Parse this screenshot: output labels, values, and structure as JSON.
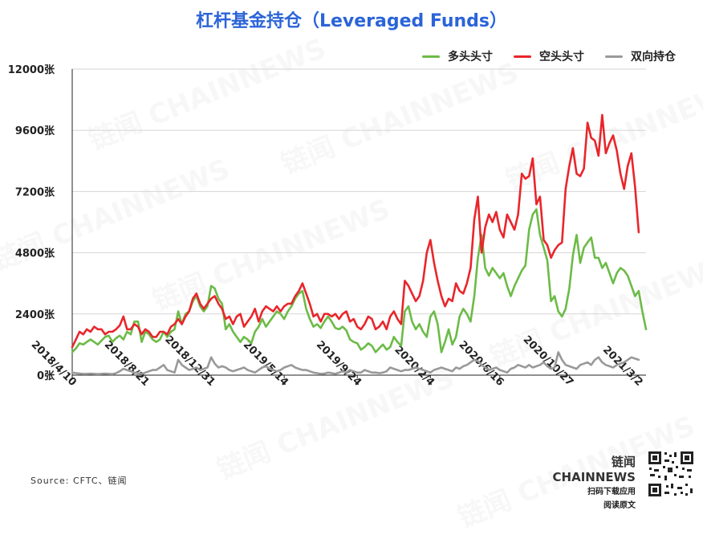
{
  "title": "杠杆基金持仓（Leveraged Funds）",
  "legend": [
    {
      "label": "多头头寸",
      "color": "#6cbb47"
    },
    {
      "label": "空头头寸",
      "color": "#e8262b"
    },
    {
      "label": "双向持仓",
      "color": "#999999"
    }
  ],
  "source": "Source: CFTC、链闻",
  "brand": {
    "name": "链闻 CHAINNEWS",
    "line1": "扫码下载应用",
    "line2": "阅读原文"
  },
  "watermark": "链闻 CHAINNEWS",
  "chart_data": {
    "type": "line",
    "ylim": [
      0,
      12000
    ],
    "yticks": [
      "0张",
      "2400张",
      "4800张",
      "7200张",
      "9600张",
      "12000张"
    ],
    "ytick_values": [
      0,
      2400,
      4800,
      7200,
      9600,
      12000
    ],
    "xticks": [
      "2018/4/10",
      "2018/8/21",
      "2018/12/31",
      "2019/5/14",
      "2019/9/24",
      "2020/2/4",
      "2020/6/16",
      "2020/10/27",
      "2021/3/2"
    ],
    "xtick_index": [
      0,
      20,
      38,
      58,
      78,
      98,
      117,
      136,
      155
    ],
    "grid": true,
    "legend_position": "top-right",
    "series": [
      {
        "name": "多头头寸",
        "color": "#6cbb47",
        "values": [
          900,
          1050,
          1250,
          1200,
          1300,
          1400,
          1300,
          1200,
          1350,
          1500,
          1550,
          1300,
          1450,
          1550,
          1400,
          1700,
          1600,
          2100,
          2100,
          1300,
          1700,
          1600,
          1400,
          1300,
          1400,
          1700,
          1500,
          1700,
          1800,
          2500,
          2000,
          2400,
          2500,
          2900,
          3100,
          2700,
          2500,
          2700,
          3500,
          3400,
          3000,
          2800,
          1800,
          2000,
          1700,
          1500,
          1300,
          1500,
          1400,
          1250,
          1700,
          1900,
          2200,
          1900,
          2100,
          2300,
          2500,
          2400,
          2200,
          2500,
          2700,
          3000,
          3200,
          3300,
          2600,
          2200,
          1900,
          2000,
          1850,
          2100,
          2300,
          2100,
          1850,
          1800,
          1900,
          1750,
          1400,
          1300,
          1250,
          1000,
          1100,
          1250,
          1150,
          900,
          1050,
          1200,
          1000,
          1100,
          1500,
          1300,
          1150,
          2500,
          2700,
          2100,
          1800,
          2000,
          1700,
          1500,
          2300,
          2500,
          2000,
          900,
          1300,
          1800,
          1200,
          1500,
          2300,
          2600,
          2400,
          2100,
          3100,
          4600,
          5500,
          4200,
          3900,
          4200,
          4000,
          3800,
          4000,
          3500,
          3100,
          3500,
          3800,
          4100,
          4300,
          5700,
          6300,
          6500,
          5500,
          5000,
          4500,
          2900,
          3100,
          2500,
          2300,
          2600,
          3400,
          4700,
          5500,
          4400,
          5000,
          5200,
          5400,
          4600,
          4600,
          4200,
          4400,
          4000,
          3600,
          4000,
          4200,
          4100,
          3900,
          3500,
          3100,
          3300,
          2500,
          1800
        ]
      },
      {
        "name": "空头头寸",
        "color": "#e8262b",
        "values": [
          1100,
          1400,
          1700,
          1600,
          1800,
          1700,
          1900,
          1800,
          1800,
          1600,
          1700,
          1700,
          1800,
          1950,
          2300,
          1800,
          1800,
          2000,
          1900,
          1600,
          1800,
          1700,
          1500,
          1500,
          1700,
          1700,
          1600,
          1900,
          2000,
          2200,
          2000,
          2300,
          2500,
          3000,
          3200,
          2800,
          2600,
          2800,
          3000,
          3100,
          2800,
          2600,
          2200,
          2300,
          2000,
          2300,
          2400,
          1900,
          2100,
          2300,
          2600,
          2100,
          2500,
          2700,
          2600,
          2500,
          2700,
          2500,
          2700,
          2800,
          2800,
          3100,
          3300,
          3600,
          3200,
          2800,
          2300,
          2400,
          2100,
          2400,
          2400,
          2300,
          2400,
          2200,
          2400,
          2500,
          2100,
          2200,
          1900,
          1800,
          2000,
          2300,
          2200,
          1800,
          1900,
          2100,
          1800,
          2300,
          2500,
          2200,
          2000,
          3700,
          3500,
          3200,
          2900,
          3100,
          3700,
          4800,
          5300,
          4400,
          3700,
          3100,
          2700,
          3000,
          2900,
          3600,
          3300,
          3200,
          3600,
          4200,
          6100,
          7000,
          4800,
          5800,
          6300,
          6000,
          6400,
          5700,
          5400,
          6300,
          6000,
          5700,
          6300,
          7900,
          7700,
          7800,
          8500,
          6700,
          7000,
          5300,
          5100,
          4600,
          4900,
          5100,
          5200,
          7300,
          8200,
          8900,
          7900,
          7800,
          8100,
          9900,
          9300,
          9200,
          8600,
          10200,
          8700,
          9100,
          9400,
          8800,
          7900,
          7300,
          8200,
          8700,
          7400,
          5600
        ]
      },
      {
        "name": "双向持仓",
        "color": "#999999",
        "values": [
          100,
          80,
          60,
          50,
          50,
          60,
          50,
          40,
          50,
          60,
          50,
          40,
          80,
          150,
          250,
          200,
          150,
          100,
          80,
          50,
          100,
          150,
          200,
          200,
          300,
          400,
          200,
          150,
          100,
          600,
          400,
          300,
          200,
          250,
          300,
          200,
          250,
          300,
          700,
          450,
          300,
          350,
          300,
          200,
          150,
          200,
          250,
          300,
          200,
          150,
          100,
          200,
          300,
          350,
          250,
          200,
          150,
          200,
          300,
          350,
          400,
          300,
          250,
          200,
          200,
          150,
          100,
          80,
          50,
          60,
          100,
          80,
          50,
          100,
          150,
          100,
          200,
          150,
          100,
          100,
          200,
          150,
          100,
          100,
          80,
          100,
          150,
          300,
          250,
          200,
          150,
          200,
          200,
          250,
          300,
          250,
          200,
          150,
          100,
          200,
          250,
          300,
          250,
          200,
          150,
          300,
          250,
          350,
          400,
          500,
          600,
          550,
          400,
          300,
          200,
          250,
          300,
          200,
          150,
          100,
          250,
          300,
          400,
          350,
          300,
          400,
          300,
          350,
          400,
          500,
          350,
          250,
          300,
          900,
          600,
          400,
          350,
          300,
          250,
          400,
          450,
          500,
          400,
          600,
          700,
          500,
          400,
          350,
          300,
          400,
          450,
          500,
          600,
          700,
          650,
          600
        ]
      }
    ]
  }
}
